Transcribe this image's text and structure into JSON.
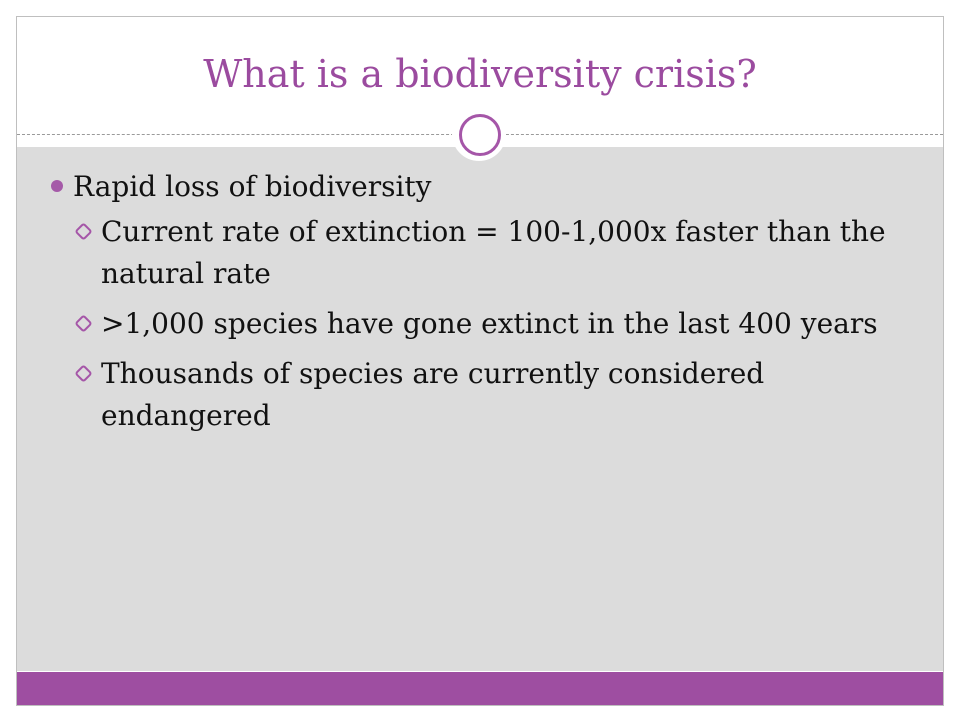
{
  "slide": {
    "title": "What is a biodiversity crisis?",
    "bullet": "Rapid loss of biodiversity",
    "sub_bullets": [
      "Current rate of extinction = 100-1,000x faster than the natural rate",
      ">1,000 species have gone extinct in the last 400 years",
      "Thousands of species are currently considered endangered"
    ]
  },
  "colors": {
    "title": "#9b4b9f",
    "accent": "#9e4ea1",
    "content_background": "#dcdcdc"
  }
}
